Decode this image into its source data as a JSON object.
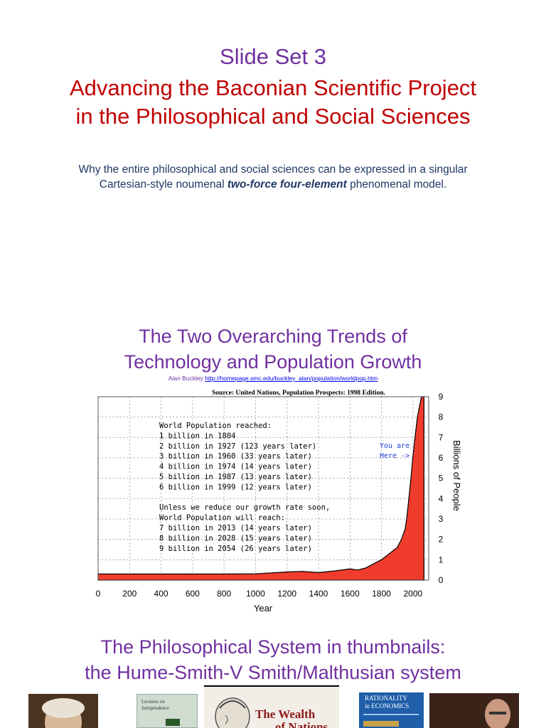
{
  "header": {
    "slide_set": "Slide Set 3",
    "title_line1": "Advancing the Baconian Scientific Project",
    "title_line2": "in the Philosophical and Social Sciences",
    "subtitle_line1": "Why the entire philosophical and social sciences can be expressed in a singular",
    "subtitle_line2_pre": "Cartesian-style noumenal ",
    "subtitle_line2_em": "two-force four-element",
    "subtitle_line2_post": " phenomenal model."
  },
  "trends": {
    "title_line1": "The Two Overarching Trends of",
    "title_line2": "Technology and Population Growth",
    "credit_name": "Alan Buckley",
    "credit_url": "http://homepage.smc.edu/buckley_alan/population/worldpop.htm"
  },
  "chart_data": {
    "type": "area",
    "title": "Source: United Nations, Population Prospects: 1998 Edition.",
    "xlabel": "Year",
    "ylabel": "Billions of People",
    "x_ticks": [
      "0",
      "200",
      "400",
      "600",
      "800",
      "1000",
      "1200",
      "1400",
      "1600",
      "1800",
      "2000"
    ],
    "y_ticks": [
      "0",
      "1",
      "2",
      "3",
      "4",
      "5",
      "6",
      "7",
      "8",
      "9"
    ],
    "xlim": [
      0,
      2100
    ],
    "ylim": [
      0,
      9
    ],
    "grid": true,
    "fill_color": "#f03c2c",
    "series": [
      {
        "x": [
          0,
          200,
          400,
          600,
          800,
          1000,
          1200,
          1300,
          1400,
          1500,
          1600,
          1650,
          1700,
          1750,
          1800,
          1850,
          1900,
          1927,
          1950,
          1960,
          1974,
          1987,
          1999,
          2013,
          2028,
          2054,
          2070
        ],
        "values": [
          0.3,
          0.3,
          0.3,
          0.3,
          0.3,
          0.31,
          0.4,
          0.43,
          0.37,
          0.45,
          0.55,
          0.5,
          0.6,
          0.8,
          1.0,
          1.3,
          1.6,
          2.0,
          2.5,
          3.0,
          4.0,
          5.0,
          6.0,
          7.0,
          8.0,
          9.0,
          9.0
        ]
      }
    ],
    "annotation_lines": [
      "World Population reached:",
      "1 billion in 1804",
      "2 billion in 1927 (123 years later)",
      "3 billion in 1960 (33 years later)",
      "4 billion in 1974 (14 years later)",
      "5 billion in 1987 (13 years later)",
      "6 billion in 1999 (12 years later)",
      "",
      "Unless we reduce our growth rate soon,",
      "World Population will reach:",
      "7 billion in 2013 (14 years later)",
      "8 billion in 2028 (15 years later)",
      "9 billion in 2054 (26 years later)"
    ],
    "marker_text_1": "You are",
    "marker_text_2": "Here ->"
  },
  "philosophy": {
    "title_line1": "The Philosophical System in thumbnails:",
    "title_line2": "the Hume-Smith-V Smith/Malthusian system"
  },
  "thumbnails": {
    "lectures_line1": "Lectures on",
    "lectures_line2": "Jurisprudence",
    "wealth_line1": "The Wealth",
    "wealth_line2": "of Nations",
    "rationality_line1": "RATIONALITY",
    "rationality_line2": "in ECONOMICS"
  }
}
